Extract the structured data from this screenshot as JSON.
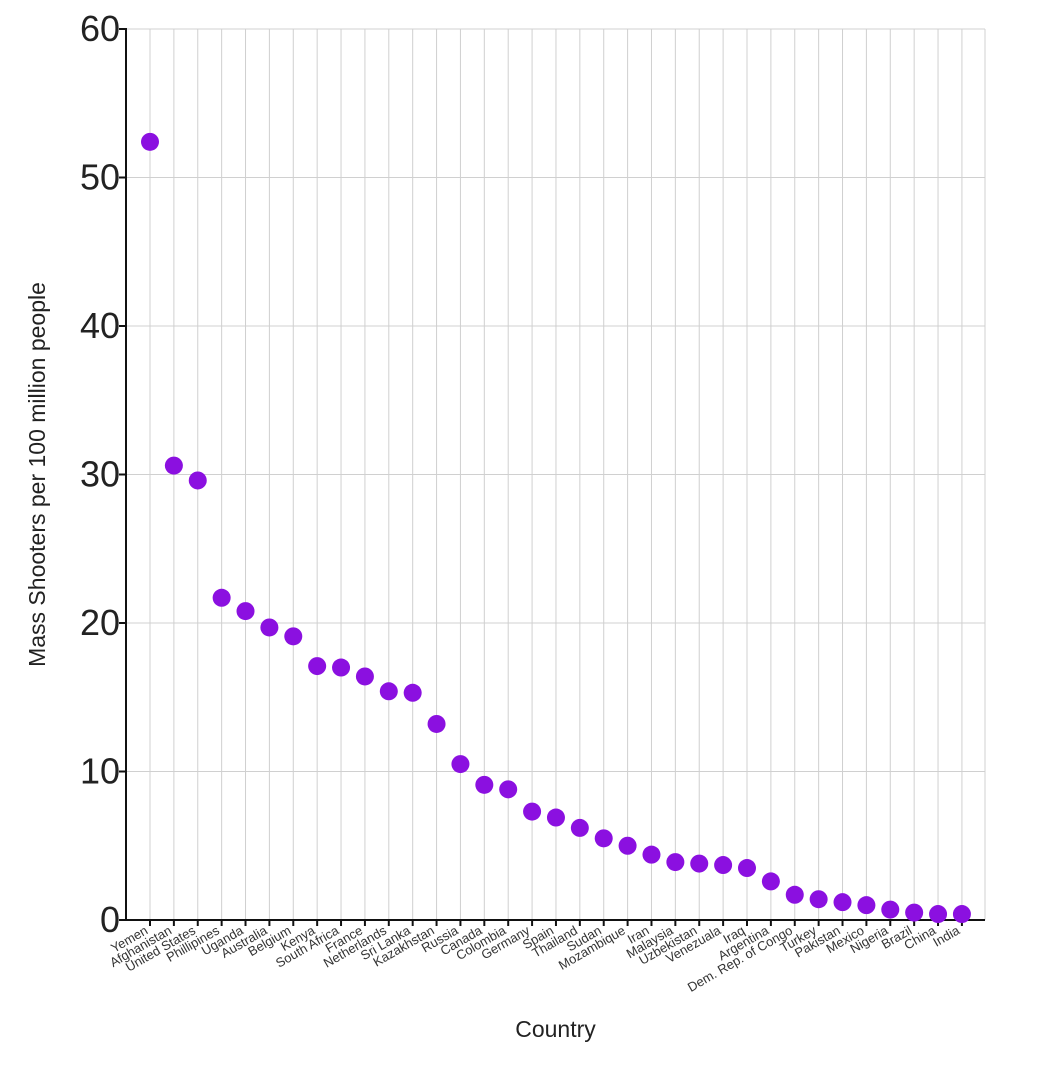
{
  "chart_data": {
    "type": "scatter",
    "title": "",
    "xlabel": "Country",
    "ylabel": "Mass Shooters per 100 million people",
    "ylim": [
      0,
      60
    ],
    "yticks": [
      0,
      10,
      20,
      30,
      40,
      50,
      60
    ],
    "grid": true,
    "marker_color": "#8b10e0",
    "categories": [
      "Yemen",
      "Afghanistan",
      "United States",
      "Phillipines",
      "Uganda",
      "Australia",
      "Belgium",
      "Kenya",
      "South Africa",
      "France",
      "Netherlands",
      "Sri Lanka",
      "Kazakhstan",
      "Russia",
      "Canada",
      "Colombia",
      "Germany",
      "Spain",
      "Thailand",
      "Sudan",
      "Mozambique",
      "Iran",
      "Malaysia",
      "Uzbekistan",
      "Venezuala",
      "Iraq",
      "Argentina",
      "Dem. Rep. of Congo",
      "Turkey",
      "Pakistan",
      "Mexico",
      "Nigeria",
      "Brazil",
      "China",
      "India"
    ],
    "values": [
      52.4,
      30.6,
      29.6,
      21.7,
      20.8,
      19.7,
      19.1,
      17.1,
      17.0,
      16.4,
      15.4,
      15.3,
      13.2,
      10.5,
      9.1,
      8.8,
      7.3,
      6.9,
      6.2,
      5.5,
      5.0,
      4.4,
      3.9,
      3.8,
      3.7,
      3.5,
      2.6,
      1.7,
      1.4,
      1.2,
      1.0,
      0.7,
      0.5,
      0.4,
      0.4
    ]
  }
}
